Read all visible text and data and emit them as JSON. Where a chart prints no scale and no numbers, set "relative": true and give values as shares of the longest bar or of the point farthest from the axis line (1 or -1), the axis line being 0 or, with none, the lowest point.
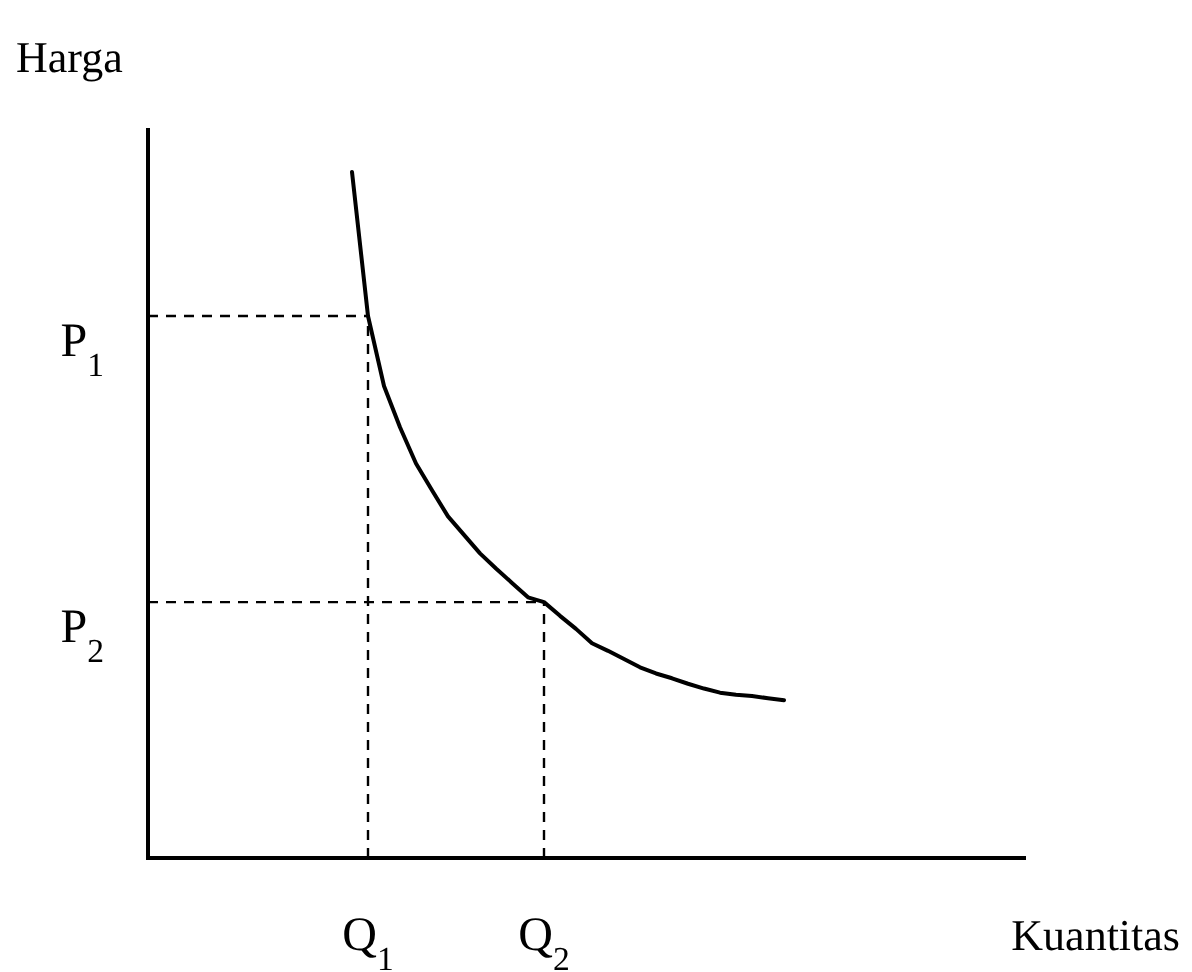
{
  "chart_data": {
    "type": "line",
    "relative": true,
    "xlabel": "Kuantitas",
    "annotations": [
      "Harga"
    ],
    "categories": [
      null,
      "Q$_{1}$",
      null,
      null,
      null,
      null,
      null,
      null,
      null,
      null,
      null,
      null,
      "Q$_{2}$",
      null,
      null,
      null,
      null,
      null,
      null,
      null,
      null,
      null,
      null,
      null,
      null,
      null,
      null,
      null
    ],
    "series": [
      {
        "color": "#000000",
        "values": [
          1.0,
          0.79,
          0.688,
          0.628,
          0.575,
          0.536,
          0.498,
          0.471,
          0.444,
          0.422,
          0.401,
          0.38,
          0.373,
          0.353,
          0.334,
          0.313,
          0.302,
          0.29,
          0.278,
          0.269,
          0.262,
          0.254,
          0.247,
          0.241,
          0.238,
          0.236,
          0.233,
          0.23
        ],
        "line_style": "solid"
      }
    ],
    "ref_lines": [
      {
        "axis": "y",
        "value": 0.79,
        "label": "P$_{1}$",
        "line_style": "dashed",
        "color": "#000000"
      },
      {
        "axis": "y",
        "value": 0.373,
        "label": "P$_{2}$",
        "line_style": "dashed",
        "color": "#000000"
      },
      {
        "axis": "x",
        "value": "Q$_{1}$",
        "line_style": "dashed",
        "color": "#000000"
      },
      {
        "axis": "x",
        "value": "Q$_{2}$",
        "line_style": "dashed",
        "color": "#000000"
      }
    ]
  }
}
